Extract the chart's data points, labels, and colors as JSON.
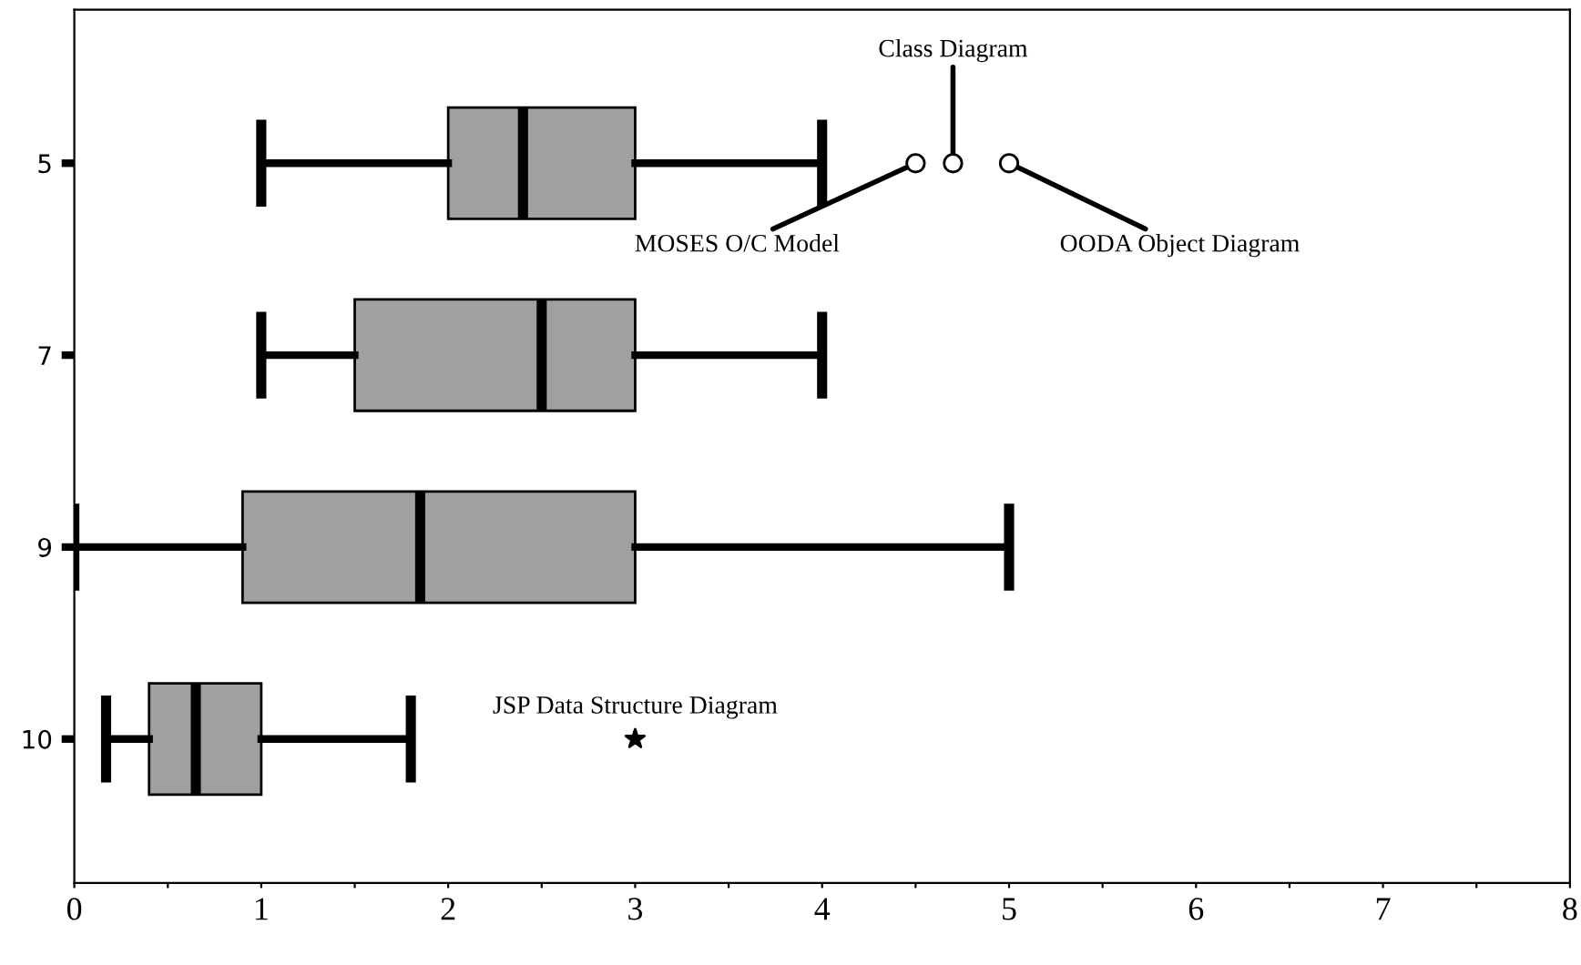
{
  "chart_data": {
    "type": "box",
    "orientation": "horizontal",
    "categories": [
      "5",
      "7",
      "9",
      "10"
    ],
    "series": [
      {
        "color": "#a0a0a0",
        "boxes": [
          {
            "low": 1.0,
            "q1": 2.0,
            "median": 2.4,
            "q3": 3.0,
            "high": 4.0,
            "outliers": [
              4.5,
              4.7,
              5.0
            ]
          },
          {
            "low": 1.0,
            "q1": 1.5,
            "median": 2.5,
            "q3": 3.0,
            "high": 4.0
          },
          {
            "low": 0.0,
            "q1": 0.9,
            "median": 1.85,
            "q3": 3.0,
            "high": 5.0
          },
          {
            "low": 0.17,
            "q1": 0.4,
            "median": 0.65,
            "q3": 1.0,
            "high": 1.8
          }
        ]
      },
      {
        "type": "scatter",
        "marker": "star",
        "color": "#000000",
        "x": [
          "10"
        ],
        "values": [
          3.0
        ]
      }
    ],
    "xlim": [
      0,
      8
    ],
    "xticks": [
      0,
      {
        "value": 0.5,
        "label": null
      },
      1,
      {
        "value": 1.5,
        "label": null
      },
      2,
      {
        "value": 2.5,
        "label": null
      },
      3,
      {
        "value": 3.5,
        "label": null
      },
      4,
      {
        "value": 4.5,
        "label": null
      },
      5,
      {
        "value": 5.5,
        "label": null
      },
      6,
      {
        "value": 6.5,
        "label": null
      },
      7,
      {
        "value": 7.5,
        "label": null
      },
      8
    ],
    "annotations": [
      "Class Diagram",
      "MOSES O/C Model",
      "OODA Object Diagram",
      {
        "text": "JSP Data Structure Diagram",
        "x": 3.0,
        "y": "10"
      }
    ],
    "grid": false
  }
}
